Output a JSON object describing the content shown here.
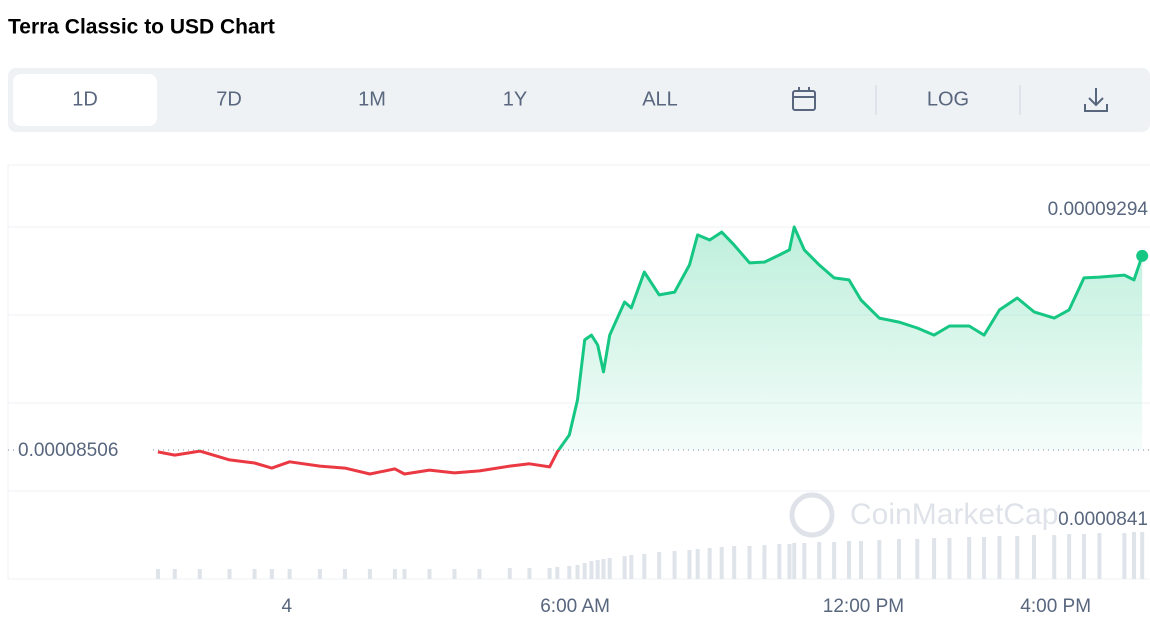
{
  "chart_data": {
    "type": "line",
    "title": "Terra Classic to USD Chart",
    "ranges": [
      "1D",
      "7D",
      "1M",
      "1Y",
      "ALL"
    ],
    "active_range": 0,
    "log_button": "LOG",
    "watermark": "CoinMarketCap",
    "up_color": "#16c784",
    "down_color": "#ea3943",
    "high": 9.294e-05,
    "open": 8.506e-05,
    "low": 8.41e-05,
    "xlim": [
      -5.8,
      17.9
    ],
    "xticks": [
      {
        "value": 0,
        "label": "4"
      },
      {
        "value": 6,
        "label": "6:00 AM"
      },
      {
        "value": 12,
        "label": "12:00 PM"
      },
      {
        "value": 16,
        "label": "4:00 PM"
      }
    ],
    "ylim": [
      8.05e-05,
      9.513e-05
    ],
    "x": [
      -2.68,
      -2.33,
      -1.81,
      -1.19,
      -0.67,
      -0.31,
      0.06,
      0.69,
      1.21,
      1.73,
      2.25,
      2.45,
      2.97,
      3.49,
      4.01,
      4.64,
      5.05,
      5.47,
      5.63,
      5.88,
      6.05,
      6.2,
      6.34,
      6.47,
      6.59,
      6.72,
      7.03,
      7.17,
      7.44,
      7.75,
      8.07,
      8.38,
      8.55,
      8.8,
      9.05,
      9.31,
      9.63,
      9.94,
      10.25,
      10.46,
      10.56,
      10.77,
      11.08,
      11.39,
      11.7,
      11.95,
      12.33,
      12.74,
      13.12,
      13.47,
      13.79,
      14.2,
      14.51,
      14.83,
      15.2,
      15.55,
      15.97,
      16.28,
      16.59,
      16.91,
      17.43,
      17.63,
      17.8
    ],
    "values": [
      8.499e-05,
      8.488e-05,
      8.502e-05,
      8.471e-05,
      8.46e-05,
      8.442e-05,
      8.464e-05,
      8.449e-05,
      8.442e-05,
      8.421e-05,
      8.439e-05,
      8.421e-05,
      8.435e-05,
      8.425e-05,
      8.432e-05,
      8.449e-05,
      8.457e-05,
      8.446e-05,
      8.499e-05,
      8.559e-05,
      8.683e-05,
      8.895e-05,
      8.912e-05,
      8.877e-05,
      8.782e-05,
      8.912e-05,
      9.029e-05,
      9.008e-05,
      9.135e-05,
      9.054e-05,
      9.064e-05,
      9.16e-05,
      9.266e-05,
      9.248e-05,
      9.276e-05,
      9.23e-05,
      9.167e-05,
      9.17e-05,
      9.195e-05,
      9.213e-05,
      9.294e-05,
      9.213e-05,
      9.16e-05,
      9.114e-05,
      9.107e-05,
      9.036e-05,
      8.972e-05,
      8.958e-05,
      8.937e-05,
      8.912e-05,
      8.944e-05,
      8.944e-05,
      8.912e-05,
      9.001e-05,
      9.043e-05,
      8.994e-05,
      8.972e-05,
      9.001e-05,
      9.114e-05,
      9.117e-05,
      9.124e-05,
      9.107e-05,
      9.192e-05
    ],
    "volume_lim": [
      0,
      100
    ],
    "volume": [
      10,
      10,
      10,
      10,
      10,
      10,
      10,
      10,
      10,
      10,
      10,
      10,
      10,
      10,
      10,
      11,
      11,
      11,
      12,
      13,
      14,
      16,
      18,
      19,
      20,
      21,
      23,
      24,
      25,
      27,
      28,
      29,
      30,
      31,
      32,
      33,
      33,
      34,
      35,
      35,
      36,
      36,
      37,
      37,
      38,
      38,
      39,
      40,
      40,
      41,
      41,
      42,
      42,
      43,
      43,
      44,
      44,
      45,
      45,
      46,
      46,
      47,
      47
    ]
  }
}
